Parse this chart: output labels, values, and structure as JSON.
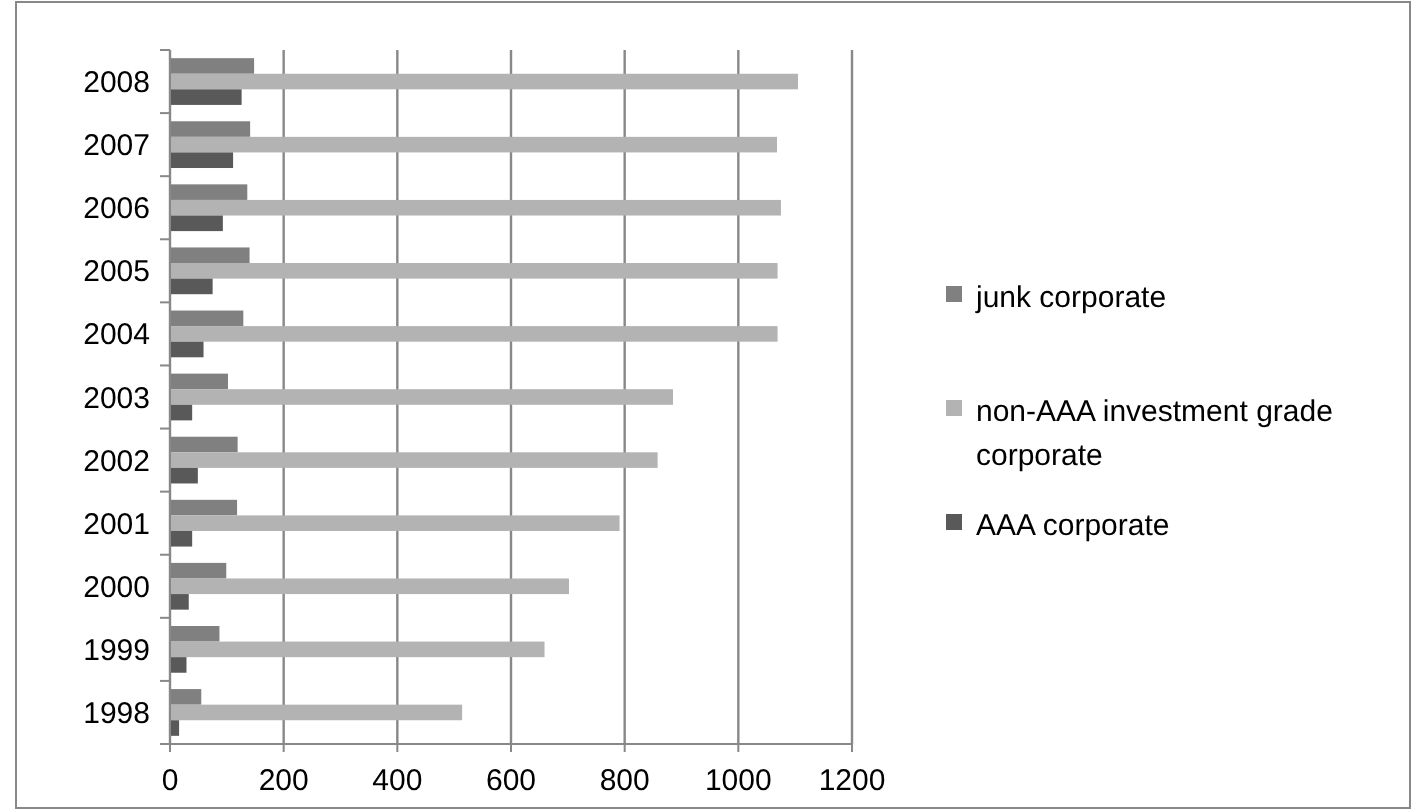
{
  "chart_data": {
    "type": "bar",
    "orientation": "horizontal",
    "categories": [
      "2008",
      "2007",
      "2006",
      "2005",
      "2004",
      "2003",
      "2002",
      "2001",
      "2000",
      "1999",
      "1998"
    ],
    "series": [
      {
        "name": "junk corporate",
        "color": "#808080",
        "values": [
          148,
          141,
          136,
          140,
          129,
          102,
          119,
          118,
          99,
          87,
          55
        ]
      },
      {
        "name": "non-AAA investment grade corporate",
        "color": "#b3b3b3",
        "values": [
          1105,
          1068,
          1075,
          1069,
          1069,
          885,
          858,
          791,
          702,
          659,
          514
        ]
      },
      {
        "name": "AAA corporate",
        "color": "#595959",
        "values": [
          126,
          111,
          93,
          75,
          59,
          39,
          49,
          39,
          33,
          29,
          16
        ]
      }
    ],
    "xlim": [
      0,
      1200
    ],
    "xticks": [
      0,
      200,
      400,
      600,
      800,
      1000,
      1200
    ],
    "grid": "x",
    "legend": "right"
  }
}
